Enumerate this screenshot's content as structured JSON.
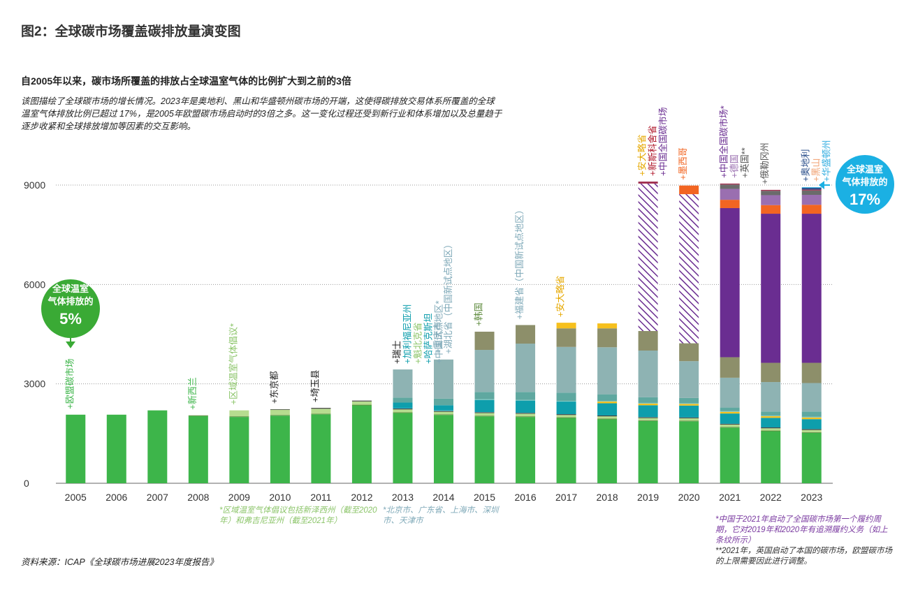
{
  "title": "图2：全球碳市场覆盖碳排放量演变图",
  "subtitle": "自2005年以来，碳市场所覆盖的排放占全球温室气体的比例扩大到之前的3倍",
  "description": "该图描绘了全球碳市场的增长情况。2023年是奥地利、黑山和华盛顿州碳市场的开端，这使得碳排放交易体系所覆盖的全球温室气体排放比例已超过 17%，是2005年欧盟碳市场启动时的3倍之多。这一变化过程还受到新行业和体系增加以及总量趋于逐步收紧和全球排放增加等因素的交互影响。",
  "source": "资料来源：ICAP《全球碳市场进展2023年度报告》",
  "footnotes": {
    "left": "*区域温室气体倡议包括新泽西州（截至2020年）和弗吉尼亚州（截至2021年）",
    "mid": "*北京市、广东省、上海市、深圳市、天津市",
    "right1": "*中国于2021年启动了全国碳市场第一个履约周期，它对2019年和2020年有追溯履约义务（如上条纹所示）",
    "right2": "**2021年，英国启动了本国的碳市场，欧盟碳市场的上限需要因此进行调整。"
  },
  "badges": {
    "left": {
      "line1": "全球温室",
      "line2": "气体排放的",
      "pct": "5%",
      "color": "#3aaa35"
    },
    "right": {
      "line1": "全球温室",
      "line2": "气体排放的",
      "pct": "17%",
      "color": "#1bb0e3"
    }
  },
  "colors": {
    "eu": "#3db54a",
    "rggi": "#b6dc8f",
    "tokyo": "#2d2d2d",
    "saitama": "#4a4a4a",
    "nz": "#5d8a3c",
    "cal": "#0e9eac",
    "quebec": "#7ec8c2",
    "kaz": "#27b8d0",
    "pilots": "#8eb3b3",
    "korea": "#8d8f6a",
    "ontario": "#f6c01d",
    "china_nat": "#6a2d91",
    "mexico": "#f26522",
    "germany": "#9a6fb0",
    "uk": "#6b6b6b",
    "austria": "#2a4e8a",
    "washington": "#34aee0",
    "grid": "#999999",
    "axis": "#666666"
  },
  "chart_data": {
    "type": "bar",
    "stacked": true,
    "categories": [
      "2005",
      "2006",
      "2007",
      "2008",
      "2009",
      "2010",
      "2011",
      "2012",
      "2013",
      "2014",
      "2015",
      "2016",
      "2017",
      "2018",
      "2019",
      "2020",
      "2021",
      "2022",
      "2023"
    ],
    "ylim": [
      0,
      10000
    ],
    "yticks": [
      0,
      3000,
      6000,
      9000
    ],
    "grid": true,
    "xlabel": "",
    "ylabel": "",
    "series": [
      {
        "key": "eu",
        "values": [
          2070,
          2070,
          2200,
          2030,
          2000,
          2040,
          2080,
          2350,
          2120,
          2060,
          2020,
          2000,
          1970,
          1930,
          1880,
          1870,
          1680,
          1570,
          1520
        ]
      },
      {
        "key": "nz",
        "values": [
          0,
          0,
          0,
          20,
          20,
          20,
          20,
          20,
          20,
          20,
          20,
          20,
          20,
          20,
          20,
          20,
          20,
          20,
          20
        ]
      },
      {
        "key": "rggi",
        "values": [
          0,
          0,
          0,
          0,
          180,
          160,
          150,
          100,
          90,
          80,
          80,
          80,
          70,
          70,
          70,
          70,
          70,
          70,
          70
        ]
      },
      {
        "key": "tokyo",
        "values": [
          0,
          0,
          0,
          0,
          0,
          15,
          15,
          15,
          15,
          15,
          15,
          15,
          15,
          15,
          15,
          15,
          15,
          15,
          15
        ]
      },
      {
        "key": "saitama",
        "values": [
          0,
          0,
          0,
          0,
          0,
          0,
          10,
          10,
          10,
          10,
          10,
          10,
          10,
          10,
          10,
          10,
          10,
          10,
          10
        ]
      },
      {
        "key": "kaz",
        "values": [
          0,
          0,
          0,
          0,
          0,
          0,
          0,
          0,
          20,
          20,
          0,
          0,
          0,
          0,
          0,
          0,
          0,
          0,
          0
        ]
      },
      {
        "key": "cal",
        "values": [
          0,
          0,
          0,
          0,
          0,
          0,
          0,
          0,
          160,
          150,
          370,
          370,
          380,
          370,
          360,
          360,
          310,
          290,
          300
        ]
      },
      {
        "key": "ontario",
        "values": [
          0,
          0,
          0,
          0,
          0,
          0,
          0,
          0,
          0,
          0,
          0,
          0,
          0,
          50,
          50,
          50,
          50,
          50,
          50
        ]
      },
      {
        "key": "quebec",
        "values": [
          0,
          0,
          0,
          0,
          0,
          0,
          0,
          0,
          0,
          0,
          20,
          20,
          20,
          20,
          20,
          20,
          20,
          20,
          20
        ]
      },
      {
        "key": "pilots",
        "values": [
          0,
          0,
          0,
          0,
          0,
          0,
          0,
          0,
          150,
          200,
          220,
          240,
          250,
          200,
          170,
          160,
          110,
          120,
          160
        ]
      },
      {
        "key": "pilots2",
        "values": [
          0,
          0,
          0,
          0,
          0,
          0,
          0,
          0,
          850,
          1180,
          1270,
          1460,
          1380,
          1420,
          1410,
          1110,
          900,
          890,
          860
        ]
      },
      {
        "key": "korea",
        "values": [
          0,
          0,
          0,
          0,
          0,
          0,
          0,
          0,
          0,
          0,
          550,
          560,
          560,
          570,
          590,
          540,
          620,
          580,
          610
        ]
      },
      {
        "key": "ontario2",
        "values": [
          0,
          0,
          0,
          0,
          0,
          0,
          0,
          0,
          0,
          0,
          0,
          0,
          170,
          150,
          0,
          0,
          0,
          0,
          0
        ]
      },
      {
        "key": "china_nat",
        "values": [
          0,
          0,
          0,
          0,
          0,
          0,
          0,
          0,
          0,
          0,
          0,
          0,
          0,
          0,
          0,
          0,
          4500,
          4500,
          4500
        ]
      },
      {
        "key": "china_hatch",
        "values": [
          0,
          0,
          0,
          0,
          0,
          0,
          0,
          0,
          0,
          0,
          0,
          0,
          0,
          0,
          4450,
          4500,
          0,
          0,
          0
        ]
      },
      {
        "key": "mexico",
        "values": [
          0,
          0,
          0,
          0,
          0,
          0,
          0,
          0,
          0,
          0,
          0,
          0,
          0,
          0,
          0,
          260,
          250,
          260,
          270
        ]
      },
      {
        "key": "germany",
        "values": [
          0,
          0,
          0,
          0,
          0,
          0,
          0,
          0,
          0,
          0,
          0,
          0,
          0,
          0,
          0,
          0,
          330,
          300,
          300
        ]
      },
      {
        "key": "uk",
        "values": [
          0,
          0,
          0,
          0,
          0,
          0,
          0,
          0,
          0,
          0,
          0,
          0,
          0,
          0,
          0,
          0,
          130,
          130,
          130
        ]
      },
      {
        "key": "misc",
        "values": [
          0,
          0,
          0,
          0,
          0,
          0,
          0,
          0,
          0,
          0,
          0,
          0,
          0,
          0,
          60,
          0,
          30,
          30,
          30
        ]
      },
      {
        "key": "austria",
        "values": [
          0,
          0,
          0,
          0,
          0,
          0,
          0,
          0,
          0,
          0,
          0,
          0,
          0,
          0,
          0,
          0,
          0,
          0,
          50
        ]
      },
      {
        "key": "washington",
        "values": [
          0,
          0,
          0,
          0,
          0,
          0,
          0,
          0,
          0,
          0,
          0,
          0,
          0,
          0,
          0,
          0,
          0,
          0,
          20
        ]
      }
    ],
    "annotations": [
      {
        "year": "2005",
        "text": "+欧盟碳市场",
        "color": "#3db54a"
      },
      {
        "year": "2008",
        "text": "+新西兰",
        "color": "#3db54a"
      },
      {
        "year": "2009",
        "text": "+区域温室气体倡议*",
        "color": "#8cc56a"
      },
      {
        "year": "2010",
        "text": "+东京都",
        "color": "#222222"
      },
      {
        "year": "2011",
        "text": "+埼玉县",
        "color": "#222222"
      },
      {
        "year": "2013",
        "text": "+瑞士",
        "color": "#222222",
        "slot": 0
      },
      {
        "year": "2013",
        "text": "+加利福尼亚州",
        "color": "#0e9eac",
        "slot": 1
      },
      {
        "year": "2013",
        "text": "+魁北克省",
        "color": "#8cc56a",
        "slot": 2
      },
      {
        "year": "2013",
        "text": "+哈萨克斯坦",
        "color": "#0e9eac",
        "slot": 3
      },
      {
        "year": "2013",
        "text": "+中国试点地区*",
        "color": "#7fa9b8",
        "slot": 4
      },
      {
        "year": "2014",
        "text": "+重庆市",
        "color": "#7fa9b8",
        "slot": 0
      },
      {
        "year": "2014",
        "text": "+湖北省（中国新试点地区）",
        "color": "#7fa9b8",
        "slot": 1
      },
      {
        "year": "2015",
        "text": "+韩国",
        "color": "#5d8a3c"
      },
      {
        "year": "2016",
        "text": "+福建省（中国新试点地区）",
        "color": "#7fa9b8"
      },
      {
        "year": "2017",
        "text": "+安大略省",
        "color": "#e6a800"
      },
      {
        "year": "2019",
        "text": "+安大略省",
        "color": "#e6a800",
        "slot": 0
      },
      {
        "year": "2019",
        "text": "+新斯科舍省",
        "color": "#b0182b",
        "slot": 1
      },
      {
        "year": "2019",
        "text": "+中国全国碳市场",
        "color": "#6a2d91",
        "slot": 2
      },
      {
        "year": "2020",
        "text": "+墨西哥",
        "color": "#f26522"
      },
      {
        "year": "2021",
        "text": "+中国全国碳市场*",
        "color": "#6a2d91",
        "slot": 0
      },
      {
        "year": "2021",
        "text": "+德国",
        "color": "#9a6fb0",
        "slot": 1
      },
      {
        "year": "2021",
        "text": "+英国**",
        "color": "#555555",
        "slot": 2
      },
      {
        "year": "2022",
        "text": "+俄勒冈州",
        "color": "#555555"
      },
      {
        "year": "2023",
        "text": "+奥地利",
        "color": "#2a4e8a",
        "slot": 0
      },
      {
        "year": "2023",
        "text": "+黑山",
        "color": "#f0a070",
        "slot": 1
      },
      {
        "year": "2023",
        "text": "+华盛顿州",
        "color": "#34aee0",
        "slot": 2
      }
    ]
  }
}
